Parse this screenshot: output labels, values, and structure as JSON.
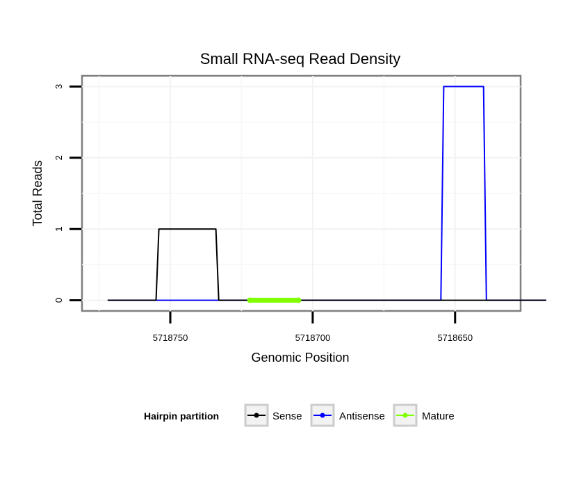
{
  "chart_data": {
    "type": "line",
    "title": "Small RNA-seq Read Density",
    "xlabel": "Genomic Position",
    "ylabel": "Total Reads",
    "x_reversed": true,
    "xlim": [
      5718781,
      5718627
    ],
    "ylim": [
      -0.15,
      3.15
    ],
    "x_ticks": [
      5718750,
      5718700,
      5718650
    ],
    "x_tick_labels": [
      "5718750",
      "5718700",
      "5718650"
    ],
    "y_ticks": [
      0,
      1,
      2,
      3
    ],
    "y_tick_labels": [
      "0",
      "1",
      "2",
      "3"
    ],
    "grid": true,
    "legend": {
      "title": "Hairpin partition",
      "position": "bottom",
      "entries": [
        {
          "label": "Sense",
          "color": "#000000"
        },
        {
          "label": "Antisense",
          "color": "#0000ff"
        },
        {
          "label": "Mature",
          "color": "#7fff00"
        }
      ]
    },
    "series": [
      {
        "name": "Antisense",
        "color": "#0000ff",
        "x": [
          5718772,
          5718755,
          5718745,
          5718725,
          5718655,
          5718654,
          5718640,
          5718639,
          5718618
        ],
        "y": [
          0,
          0,
          0,
          0,
          0,
          3,
          3,
          0,
          0
        ]
      },
      {
        "name": "Sense",
        "color": "#000000",
        "x": [
          5718772,
          5718755,
          5718754,
          5718734,
          5718733,
          5718618
        ],
        "y": [
          0,
          0,
          1,
          1,
          0,
          0
        ]
      },
      {
        "name": "Mature",
        "color": "#7fff00",
        "x": [
          5718722,
          5718705
        ],
        "y": [
          0,
          0
        ]
      }
    ]
  }
}
